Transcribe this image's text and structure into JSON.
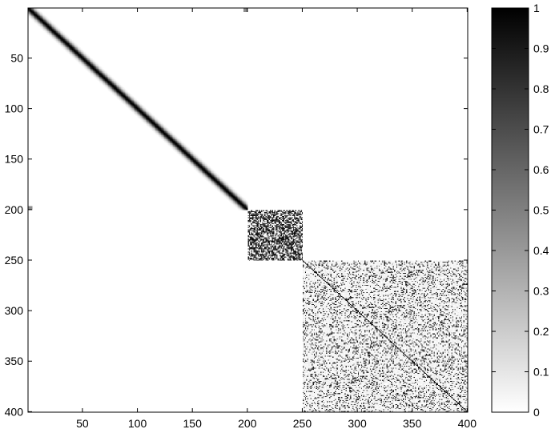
{
  "chart_data": {
    "type": "heatmap",
    "title": "",
    "xlabel": "",
    "ylabel": "",
    "xlim": [
      1,
      400
    ],
    "ylim": [
      1,
      400
    ],
    "y_reversed": true,
    "grid": false,
    "colormap": "gray-reversed",
    "x_ticks": [
      "50",
      "100",
      "150",
      "200",
      "250",
      "300",
      "350",
      "400"
    ],
    "y_ticks": [
      "50",
      "100",
      "150",
      "200",
      "250",
      "300",
      "350",
      "400"
    ],
    "colorbar": {
      "min": 0,
      "max": 1,
      "ticks": [
        "0",
        "0.1",
        "0.2",
        "0.3",
        "0.4",
        "0.5",
        "0.6",
        "0.7",
        "0.8",
        "0.9",
        "1"
      ]
    },
    "blocks": [
      {
        "name": "band-1-200",
        "rows": [
          1,
          200
        ],
        "cols": [
          1,
          200
        ],
        "pattern": "diagonal band",
        "peak": 1.0
      },
      {
        "name": "dense-200-250",
        "rows": [
          201,
          250
        ],
        "cols": [
          201,
          250
        ],
        "pattern": "dense random",
        "density": 0.6
      },
      {
        "name": "sparse-250-400",
        "rows": [
          251,
          400
        ],
        "cols": [
          251,
          400
        ],
        "pattern": "sparse random with diagonal",
        "density": 0.22
      }
    ]
  }
}
